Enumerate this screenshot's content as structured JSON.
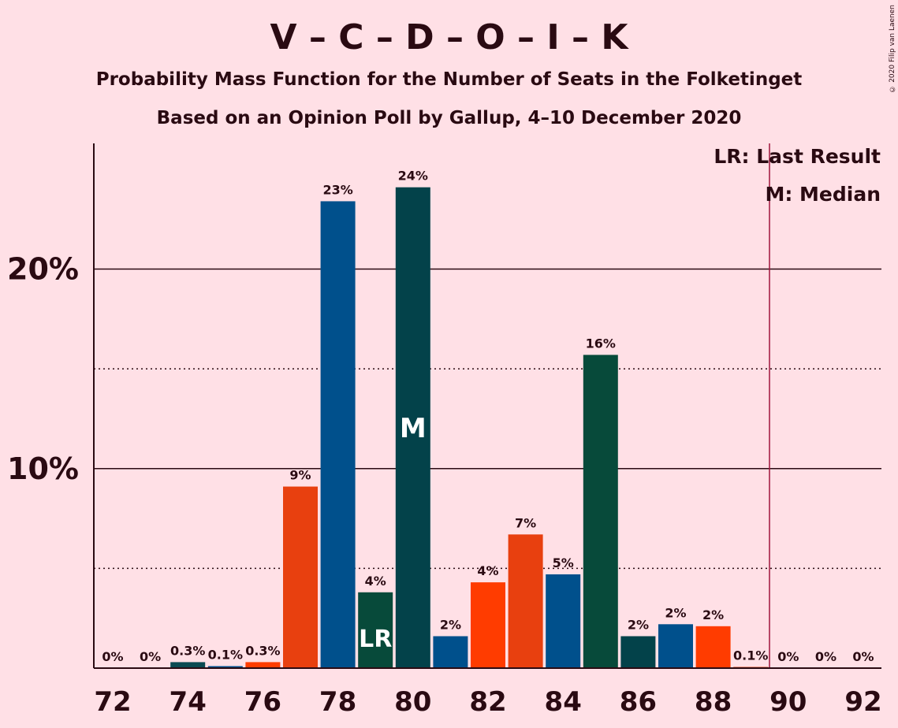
{
  "title": "V – C – D – O – I – K",
  "subtitle1": "Probability Mass Function for the Number of Seats in the Folketinget",
  "subtitle2": "Based on an Opinion Poll by Gallup, 4–10 December 2020",
  "copyright": "© 2020 Filip van Laenen",
  "legend": {
    "last_result": "LR: Last Result",
    "median": "M: Median"
  },
  "colors": {
    "background": "#FFE0E6",
    "last_result_line": "#A0143C",
    "text": "#2a0a12"
  },
  "chart_data": {
    "type": "bar",
    "x": [
      72,
      73,
      74,
      75,
      76,
      77,
      78,
      79,
      80,
      81,
      82,
      83,
      84,
      85,
      86,
      87,
      88,
      89,
      90,
      91,
      92
    ],
    "values": [
      0,
      0,
      0.3,
      0.1,
      0.3,
      9.1,
      23.4,
      3.8,
      24.1,
      1.6,
      4.3,
      6.7,
      4.7,
      15.7,
      1.6,
      2.2,
      2.1,
      0.05,
      0,
      0,
      0
    ],
    "labels": [
      "0%",
      "0%",
      "0.3%",
      "0.1%",
      "0.3%",
      "9%",
      "23%",
      "4%",
      "24%",
      "2%",
      "4%",
      "7%",
      "5%",
      "16%",
      "2%",
      "2%",
      "2%",
      "0.1%",
      "0%",
      "0%",
      "0%"
    ],
    "bar_colors": [
      "#E8400F",
      "#E8400F",
      "#0A4A52",
      "#00508C",
      "#FF3C00",
      "#E8400F",
      "#00508C",
      "#074A3A",
      "#03424A",
      "#00508C",
      "#FF3C00",
      "#E8400F",
      "#00508C",
      "#074A3A",
      "#03424A",
      "#00508C",
      "#FF3C00",
      "#E8400F",
      "#00508C",
      "#074A3A",
      "#03424A"
    ],
    "x_tick_labels": [
      "72",
      "74",
      "76",
      "78",
      "80",
      "82",
      "84",
      "86",
      "88",
      "90",
      "92"
    ],
    "y_tick_labels": [
      "10%",
      "20%"
    ],
    "ylim": [
      0,
      26.3
    ],
    "major_gridlines": [
      10,
      20
    ],
    "minor_gridlines": [
      5,
      15
    ],
    "last_result": 79,
    "last_result_label": "LR",
    "median": 80,
    "median_label": "M",
    "majority_line": 89.5,
    "legend_position": "top-right"
  }
}
